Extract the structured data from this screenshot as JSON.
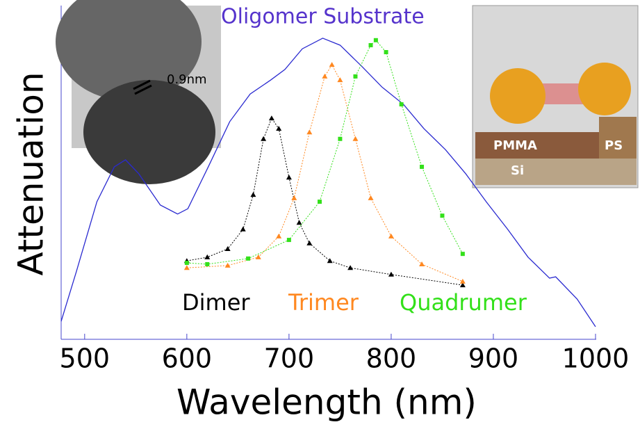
{
  "chart_data": {
    "type": "line",
    "x_label": "Wavelength (nm)",
    "y_label": "Attenuation",
    "xlim": [
      477,
      1000
    ],
    "ylim": [
      0,
      1
    ],
    "xticks": [
      500,
      600,
      700,
      800,
      900,
      1000
    ],
    "series": [
      {
        "name": "Oligomer Substrate",
        "color": "#2a2ad0",
        "marker": "none",
        "x": [
          477,
          492,
          512,
          529,
          540,
          553,
          574,
          591,
          601,
          621,
          642,
          662,
          682,
          696,
          713,
          733,
          750,
          771,
          791,
          812,
          832,
          853,
          873,
          893,
          914,
          934,
          955,
          961,
          982,
          1000
        ],
        "values": [
          0.054,
          0.205,
          0.414,
          0.519,
          0.54,
          0.498,
          0.404,
          0.377,
          0.393,
          0.519,
          0.655,
          0.738,
          0.78,
          0.812,
          0.874,
          0.906,
          0.885,
          0.822,
          0.759,
          0.707,
          0.634,
          0.571,
          0.498,
          0.414,
          0.331,
          0.247,
          0.184,
          0.188,
          0.121,
          0.038
        ]
      },
      {
        "name": "Dimer",
        "color": "#000000",
        "marker": "triangle",
        "x": [
          600,
          620,
          640,
          655,
          665,
          675,
          683,
          690,
          700,
          710,
          720,
          740,
          760,
          800,
          870
        ],
        "values": [
          0.236,
          0.247,
          0.272,
          0.331,
          0.435,
          0.603,
          0.665,
          0.634,
          0.487,
          0.351,
          0.289,
          0.236,
          0.215,
          0.195,
          0.163
        ]
      },
      {
        "name": "Trimer",
        "color": "#ff8820",
        "marker": "triangle",
        "x": [
          600,
          640,
          670,
          690,
          705,
          720,
          735,
          742,
          750,
          765,
          780,
          800,
          830,
          870
        ],
        "values": [
          0.215,
          0.222,
          0.247,
          0.31,
          0.425,
          0.623,
          0.791,
          0.826,
          0.78,
          0.603,
          0.425,
          0.31,
          0.226,
          0.174
        ]
      },
      {
        "name": "Quadrumer",
        "color": "#33e01a",
        "marker": "square",
        "x": [
          600,
          620,
          660,
          700,
          730,
          750,
          765,
          780,
          785,
          795,
          810,
          830,
          850,
          870
        ],
        "values": [
          0.23,
          0.226,
          0.243,
          0.299,
          0.414,
          0.603,
          0.791,
          0.885,
          0.9,
          0.864,
          0.707,
          0.519,
          0.372,
          0.257
        ]
      }
    ],
    "inset_labels": {
      "gap": "0.9nm",
      "layers": [
        "PMMA",
        "PS",
        "Si"
      ]
    }
  }
}
